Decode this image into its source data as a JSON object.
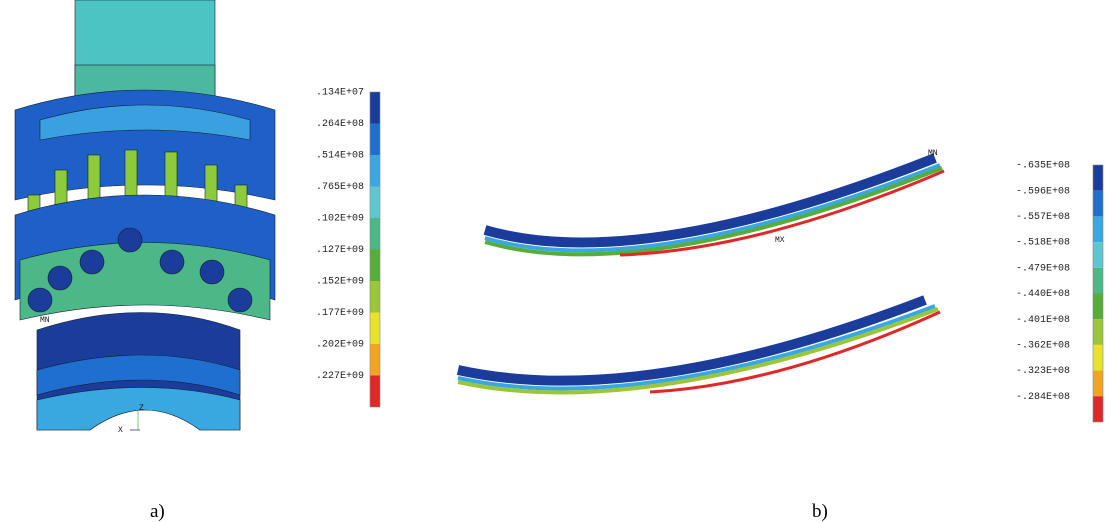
{
  "panels": [
    {
      "label": "a)",
      "legend": {
        "labels": [
          ".134E+07",
          ".264E+08",
          ".514E+08",
          ".765E+08",
          ".102E+09",
          ".127E+09",
          ".152E+09",
          ".177E+09",
          ".202E+09",
          ".227E+09"
        ],
        "colors": [
          "#1c3c9c",
          "#1f6fd0",
          "#3aa8e0",
          "#5ec6d0",
          "#4cb888",
          "#56ad3c",
          "#9cc63a",
          "#e8e22c",
          "#f2a522",
          "#e02828"
        ]
      },
      "annotations": [
        "MN",
        "X",
        "Z"
      ]
    },
    {
      "label": "b)",
      "legend": {
        "labels": [
          "-.635E+08",
          "-.596E+08",
          "-.557E+08",
          "-.518E+08",
          "-.479E+08",
          "-.440E+08",
          "-.401E+08",
          "-.362E+08",
          "-.323E+08",
          "-.284E+08"
        ],
        "colors": [
          "#1c3c9c",
          "#1f6fd0",
          "#3aa8e0",
          "#5ec6d0",
          "#4cb888",
          "#56ad3c",
          "#9cc63a",
          "#e8e22c",
          "#f2a522",
          "#e02828"
        ]
      },
      "annotations": [
        "MN",
        "MX"
      ]
    }
  ]
}
